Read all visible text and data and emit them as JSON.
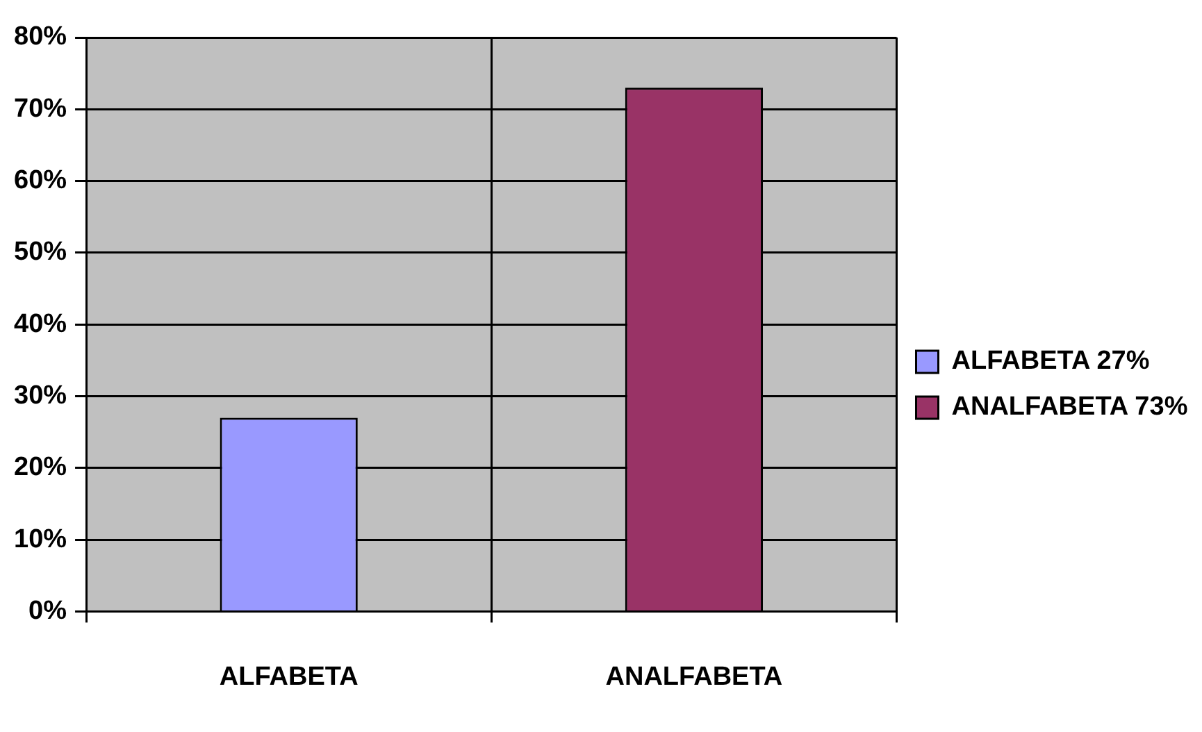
{
  "chart_data": {
    "type": "bar",
    "categories": [
      "ALFABETA",
      "ANALFABETA"
    ],
    "series": [
      {
        "name": "ALFABETA 27%",
        "color": "#9999ff",
        "values": [
          27,
          null
        ]
      },
      {
        "name": "ANALFABETA 73%",
        "color": "#993366",
        "values": [
          null,
          73
        ]
      }
    ],
    "ylim": [
      0,
      80
    ],
    "yticks": [
      {
        "value": 0,
        "label": "0%"
      },
      {
        "value": 10,
        "label": "10%"
      },
      {
        "value": 20,
        "label": "20%"
      },
      {
        "value": 30,
        "label": "30%"
      },
      {
        "value": 40,
        "label": "40%"
      },
      {
        "value": 50,
        "label": "50%"
      },
      {
        "value": 60,
        "label": "60%"
      },
      {
        "value": 70,
        "label": "70%"
      },
      {
        "value": 80,
        "label": "80%"
      }
    ],
    "grid": true,
    "legend": "right"
  }
}
